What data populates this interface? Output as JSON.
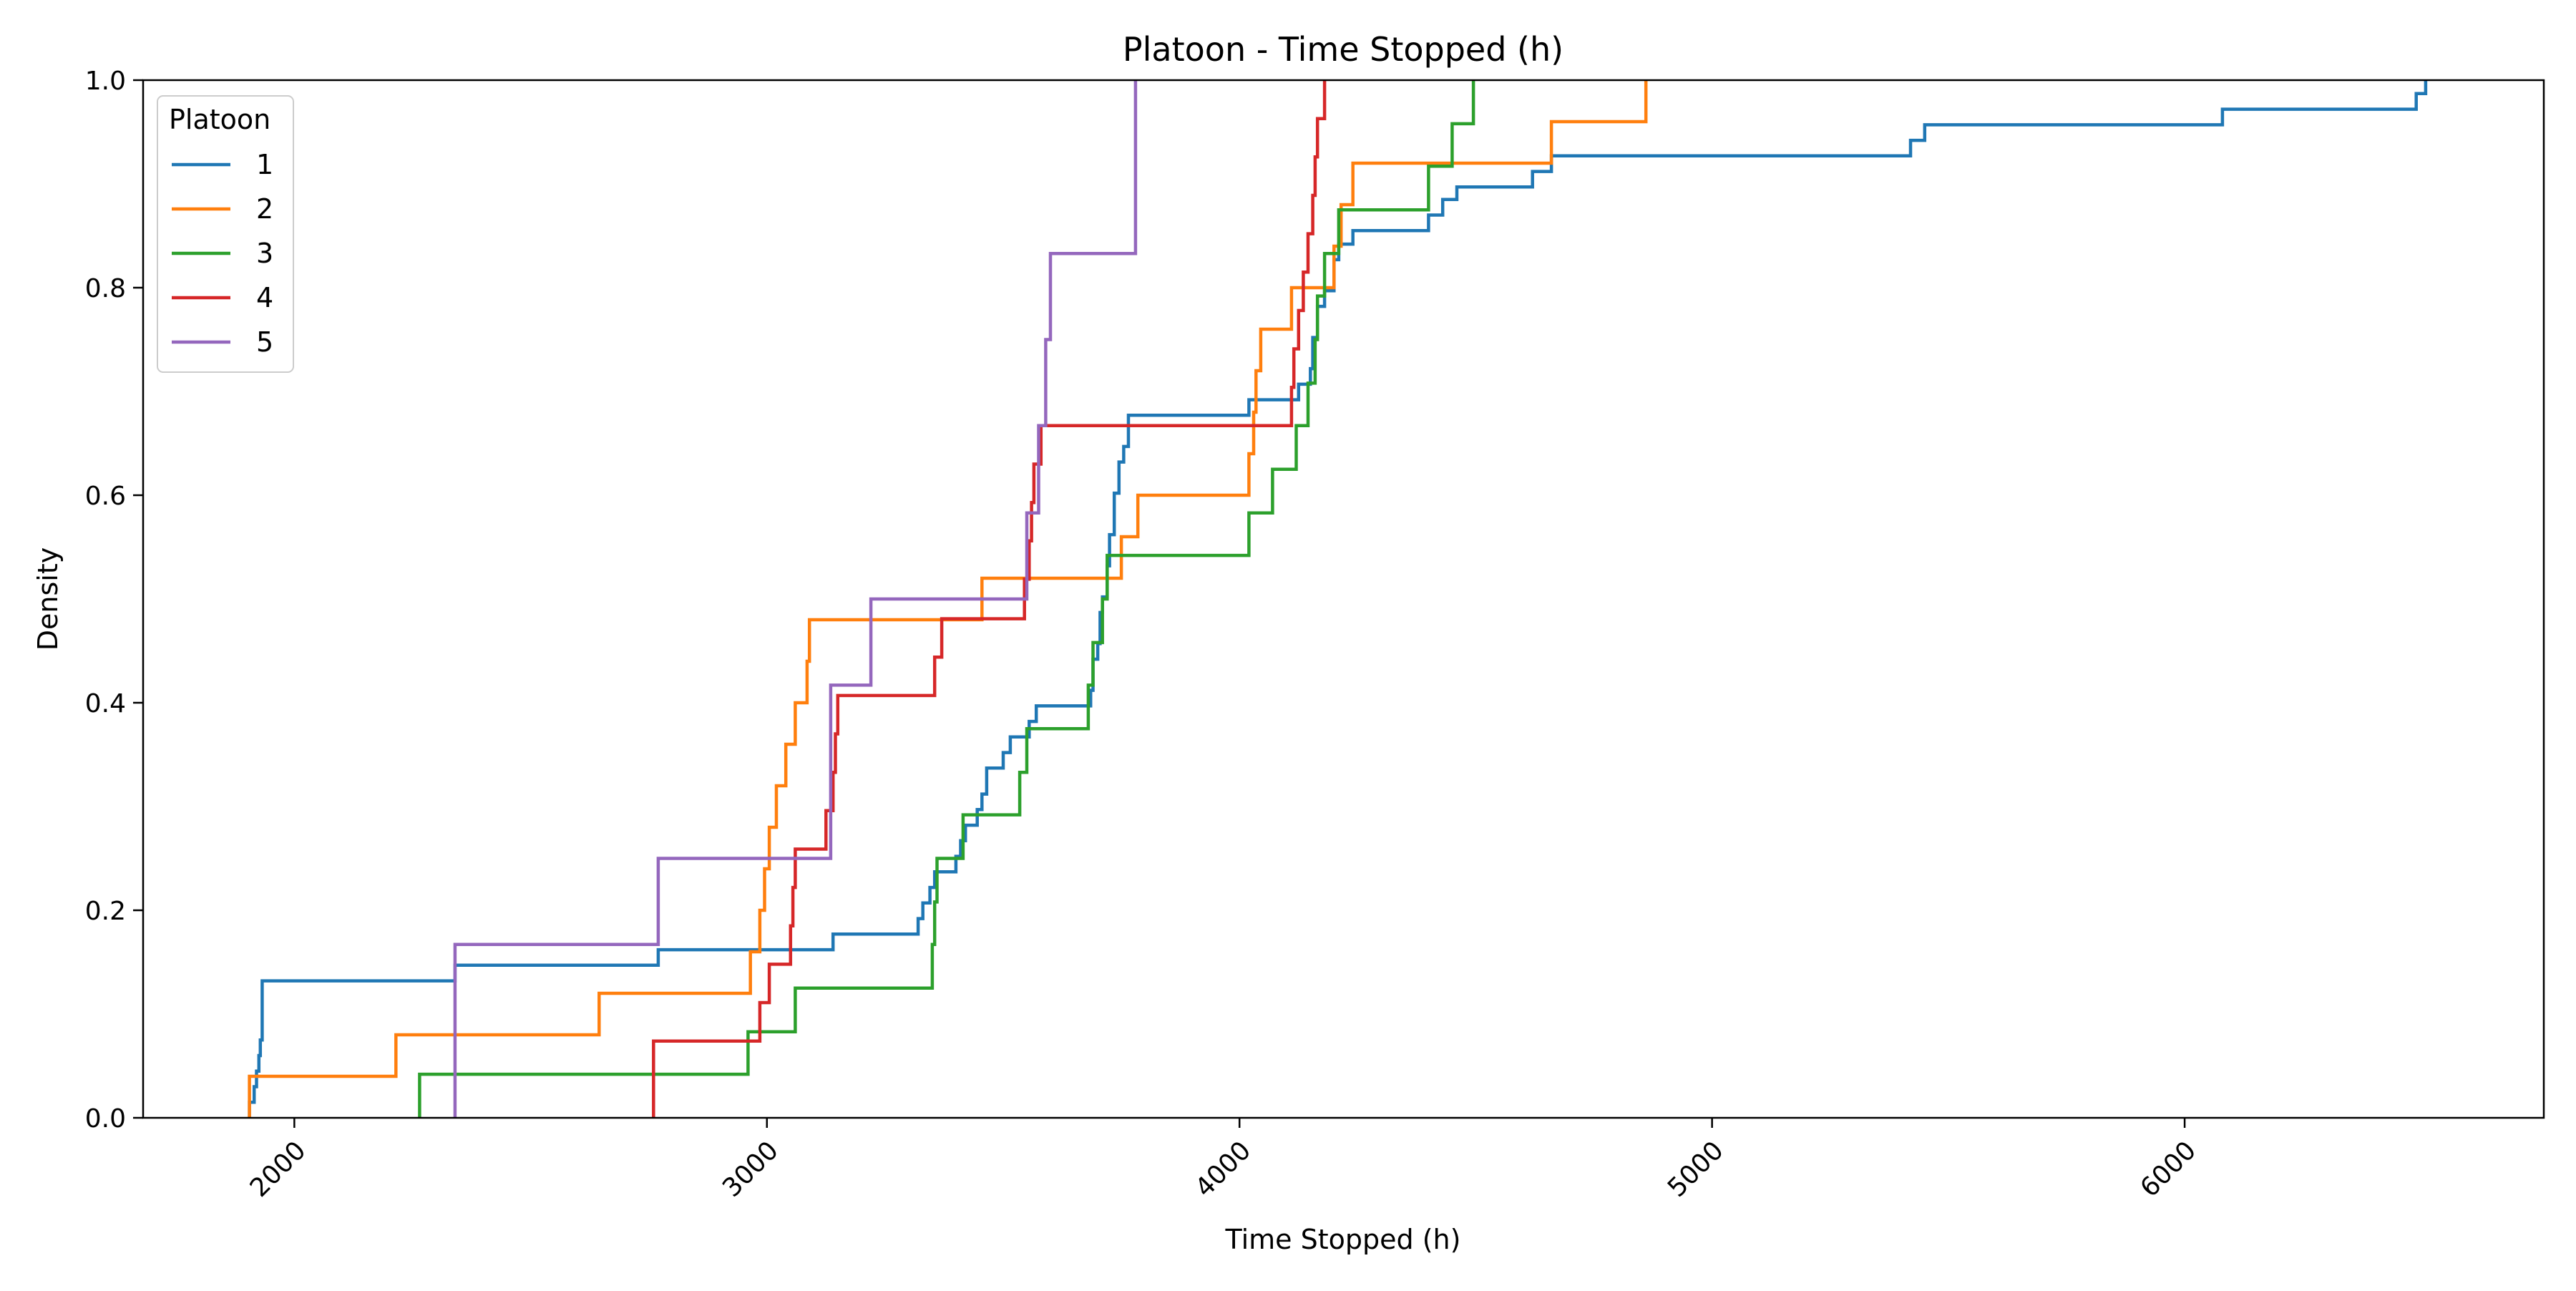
{
  "chart_data": {
    "type": "line",
    "step": true,
    "title": "Platoon - Time Stopped (h)",
    "xlabel": "Time Stopped (h)",
    "ylabel": "Density",
    "xlim": [
      1680,
      6760
    ],
    "ylim": [
      0.0,
      1.0
    ],
    "xticks": [
      2000,
      3000,
      4000,
      5000,
      6000
    ],
    "xtick_labels": [
      "2000",
      "3000",
      "4000",
      "5000",
      "6000"
    ],
    "yticks": [
      0.0,
      0.2,
      0.4,
      0.6,
      0.8,
      1.0
    ],
    "ytick_labels": [
      "0.0",
      "0.2",
      "0.4",
      "0.6",
      "0.8",
      "1.0"
    ],
    "grid": false,
    "legend": {
      "title": "Platoon",
      "placement": "top-left"
    },
    "series": [
      {
        "name": "1",
        "color": "#1f77b4",
        "points": [
          [
            1905,
            0.0
          ],
          [
            1905,
            0.015
          ],
          [
            1915,
            0.015
          ],
          [
            1915,
            0.03
          ],
          [
            1920,
            0.03
          ],
          [
            1920,
            0.045
          ],
          [
            1925,
            0.045
          ],
          [
            1925,
            0.06
          ],
          [
            1928,
            0.06
          ],
          [
            1928,
            0.075
          ],
          [
            1932,
            0.075
          ],
          [
            1932,
            0.132
          ],
          [
            2340,
            0.132
          ],
          [
            2340,
            0.147
          ],
          [
            2770,
            0.147
          ],
          [
            2770,
            0.162
          ],
          [
            3140,
            0.162
          ],
          [
            3140,
            0.177
          ],
          [
            3320,
            0.177
          ],
          [
            3320,
            0.192
          ],
          [
            3330,
            0.192
          ],
          [
            3330,
            0.207
          ],
          [
            3345,
            0.207
          ],
          [
            3345,
            0.222
          ],
          [
            3355,
            0.222
          ],
          [
            3355,
            0.237
          ],
          [
            3400,
            0.237
          ],
          [
            3400,
            0.252
          ],
          [
            3410,
            0.252
          ],
          [
            3410,
            0.267
          ],
          [
            3420,
            0.267
          ],
          [
            3420,
            0.282
          ],
          [
            3445,
            0.282
          ],
          [
            3445,
            0.297
          ],
          [
            3455,
            0.297
          ],
          [
            3455,
            0.312
          ],
          [
            3465,
            0.312
          ],
          [
            3465,
            0.337
          ],
          [
            3500,
            0.337
          ],
          [
            3500,
            0.352
          ],
          [
            3515,
            0.352
          ],
          [
            3515,
            0.367
          ],
          [
            3555,
            0.367
          ],
          [
            3555,
            0.382
          ],
          [
            3570,
            0.382
          ],
          [
            3570,
            0.397
          ],
          [
            3685,
            0.397
          ],
          [
            3685,
            0.412
          ],
          [
            3690,
            0.412
          ],
          [
            3690,
            0.442
          ],
          [
            3700,
            0.442
          ],
          [
            3700,
            0.457
          ],
          [
            3705,
            0.457
          ],
          [
            3705,
            0.487
          ],
          [
            3710,
            0.487
          ],
          [
            3710,
            0.502
          ],
          [
            3720,
            0.502
          ],
          [
            3720,
            0.532
          ],
          [
            3725,
            0.532
          ],
          [
            3725,
            0.562
          ],
          [
            3735,
            0.562
          ],
          [
            3735,
            0.602
          ],
          [
            3745,
            0.602
          ],
          [
            3745,
            0.632
          ],
          [
            3755,
            0.632
          ],
          [
            3755,
            0.647
          ],
          [
            3765,
            0.647
          ],
          [
            3765,
            0.677
          ],
          [
            4020,
            0.677
          ],
          [
            4020,
            0.692
          ],
          [
            4125,
            0.692
          ],
          [
            4125,
            0.707
          ],
          [
            4150,
            0.707
          ],
          [
            4150,
            0.722
          ],
          [
            4155,
            0.722
          ],
          [
            4155,
            0.752
          ],
          [
            4165,
            0.752
          ],
          [
            4165,
            0.782
          ],
          [
            4180,
            0.782
          ],
          [
            4180,
            0.797
          ],
          [
            4200,
            0.797
          ],
          [
            4200,
            0.827
          ],
          [
            4210,
            0.827
          ],
          [
            4210,
            0.842
          ],
          [
            4240,
            0.842
          ],
          [
            4240,
            0.855
          ],
          [
            4400,
            0.855
          ],
          [
            4400,
            0.87
          ],
          [
            4430,
            0.87
          ],
          [
            4430,
            0.885
          ],
          [
            4460,
            0.885
          ],
          [
            4460,
            0.897
          ],
          [
            4620,
            0.897
          ],
          [
            4620,
            0.912
          ],
          [
            4660,
            0.912
          ],
          [
            4660,
            0.927
          ],
          [
            5420,
            0.927
          ],
          [
            5420,
            0.942
          ],
          [
            5450,
            0.942
          ],
          [
            5450,
            0.957
          ],
          [
            6080,
            0.957
          ],
          [
            6080,
            0.972
          ],
          [
            6490,
            0.972
          ],
          [
            6490,
            0.987
          ],
          [
            6510,
            0.987
          ],
          [
            6510,
            1.0
          ]
        ]
      },
      {
        "name": "2",
        "color": "#ff7f0e",
        "points": [
          [
            1905,
            0.0
          ],
          [
            1905,
            0.04
          ],
          [
            2215,
            0.04
          ],
          [
            2215,
            0.08
          ],
          [
            2645,
            0.08
          ],
          [
            2645,
            0.12
          ],
          [
            2965,
            0.12
          ],
          [
            2965,
            0.16
          ],
          [
            2985,
            0.16
          ],
          [
            2985,
            0.2
          ],
          [
            2995,
            0.2
          ],
          [
            2995,
            0.24
          ],
          [
            3005,
            0.24
          ],
          [
            3005,
            0.28
          ],
          [
            3020,
            0.28
          ],
          [
            3020,
            0.32
          ],
          [
            3040,
            0.32
          ],
          [
            3040,
            0.36
          ],
          [
            3060,
            0.36
          ],
          [
            3060,
            0.4
          ],
          [
            3085,
            0.4
          ],
          [
            3085,
            0.44
          ],
          [
            3090,
            0.44
          ],
          [
            3090,
            0.48
          ],
          [
            3455,
            0.48
          ],
          [
            3455,
            0.52
          ],
          [
            3750,
            0.52
          ],
          [
            3750,
            0.56
          ],
          [
            3785,
            0.56
          ],
          [
            3785,
            0.6
          ],
          [
            4020,
            0.6
          ],
          [
            4020,
            0.64
          ],
          [
            4030,
            0.64
          ],
          [
            4030,
            0.68
          ],
          [
            4035,
            0.68
          ],
          [
            4035,
            0.72
          ],
          [
            4045,
            0.72
          ],
          [
            4045,
            0.76
          ],
          [
            4110,
            0.76
          ],
          [
            4110,
            0.8
          ],
          [
            4200,
            0.8
          ],
          [
            4200,
            0.84
          ],
          [
            4215,
            0.84
          ],
          [
            4215,
            0.88
          ],
          [
            4240,
            0.88
          ],
          [
            4240,
            0.92
          ],
          [
            4660,
            0.92
          ],
          [
            4660,
            0.96
          ],
          [
            4860,
            0.96
          ],
          [
            4860,
            1.0
          ]
        ]
      },
      {
        "name": "3",
        "color": "#2ca02c",
        "points": [
          [
            2265,
            0.0
          ],
          [
            2265,
            0.042
          ],
          [
            2960,
            0.042
          ],
          [
            2960,
            0.083
          ],
          [
            3060,
            0.083
          ],
          [
            3060,
            0.125
          ],
          [
            3350,
            0.125
          ],
          [
            3350,
            0.167
          ],
          [
            3355,
            0.167
          ],
          [
            3355,
            0.208
          ],
          [
            3360,
            0.208
          ],
          [
            3360,
            0.25
          ],
          [
            3415,
            0.25
          ],
          [
            3415,
            0.292
          ],
          [
            3535,
            0.292
          ],
          [
            3535,
            0.333
          ],
          [
            3550,
            0.333
          ],
          [
            3550,
            0.375
          ],
          [
            3680,
            0.375
          ],
          [
            3680,
            0.417
          ],
          [
            3690,
            0.417
          ],
          [
            3690,
            0.458
          ],
          [
            3710,
            0.458
          ],
          [
            3710,
            0.5
          ],
          [
            3720,
            0.5
          ],
          [
            3720,
            0.542
          ],
          [
            4020,
            0.542
          ],
          [
            4020,
            0.583
          ],
          [
            4070,
            0.583
          ],
          [
            4070,
            0.625
          ],
          [
            4120,
            0.625
          ],
          [
            4120,
            0.667
          ],
          [
            4145,
            0.667
          ],
          [
            4145,
            0.708
          ],
          [
            4160,
            0.708
          ],
          [
            4160,
            0.75
          ],
          [
            4165,
            0.75
          ],
          [
            4165,
            0.792
          ],
          [
            4180,
            0.792
          ],
          [
            4180,
            0.833
          ],
          [
            4210,
            0.833
          ],
          [
            4210,
            0.875
          ],
          [
            4400,
            0.875
          ],
          [
            4400,
            0.917
          ],
          [
            4450,
            0.917
          ],
          [
            4450,
            0.958
          ],
          [
            4495,
            0.958
          ],
          [
            4495,
            1.0
          ]
        ]
      },
      {
        "name": "4",
        "color": "#d62728",
        "points": [
          [
            2760,
            0.0
          ],
          [
            2760,
            0.074
          ],
          [
            2985,
            0.074
          ],
          [
            2985,
            0.111
          ],
          [
            3005,
            0.111
          ],
          [
            3005,
            0.148
          ],
          [
            3050,
            0.148
          ],
          [
            3050,
            0.185
          ],
          [
            3055,
            0.185
          ],
          [
            3055,
            0.222
          ],
          [
            3060,
            0.222
          ],
          [
            3060,
            0.259
          ],
          [
            3125,
            0.259
          ],
          [
            3125,
            0.296
          ],
          [
            3140,
            0.296
          ],
          [
            3140,
            0.333
          ],
          [
            3145,
            0.333
          ],
          [
            3145,
            0.37
          ],
          [
            3150,
            0.37
          ],
          [
            3150,
            0.407
          ],
          [
            3355,
            0.407
          ],
          [
            3355,
            0.444
          ],
          [
            3370,
            0.444
          ],
          [
            3370,
            0.481
          ],
          [
            3545,
            0.481
          ],
          [
            3545,
            0.519
          ],
          [
            3555,
            0.519
          ],
          [
            3555,
            0.556
          ],
          [
            3560,
            0.556
          ],
          [
            3560,
            0.593
          ],
          [
            3565,
            0.593
          ],
          [
            3565,
            0.63
          ],
          [
            3580,
            0.63
          ],
          [
            3580,
            0.667
          ],
          [
            4110,
            0.667
          ],
          [
            4110,
            0.704
          ],
          [
            4115,
            0.704
          ],
          [
            4115,
            0.741
          ],
          [
            4125,
            0.741
          ],
          [
            4125,
            0.778
          ],
          [
            4135,
            0.778
          ],
          [
            4135,
            0.815
          ],
          [
            4145,
            0.815
          ],
          [
            4145,
            0.852
          ],
          [
            4155,
            0.852
          ],
          [
            4155,
            0.889
          ],
          [
            4160,
            0.889
          ],
          [
            4160,
            0.926
          ],
          [
            4165,
            0.926
          ],
          [
            4165,
            0.963
          ],
          [
            4180,
            0.963
          ],
          [
            4180,
            1.0
          ]
        ]
      },
      {
        "name": "5",
        "color": "#9467bd",
        "points": [
          [
            2340,
            0.0
          ],
          [
            2340,
            0.167
          ],
          [
            2770,
            0.167
          ],
          [
            2770,
            0.25
          ],
          [
            3135,
            0.25
          ],
          [
            3135,
            0.417
          ],
          [
            3220,
            0.417
          ],
          [
            3220,
            0.5
          ],
          [
            3550,
            0.5
          ],
          [
            3550,
            0.583
          ],
          [
            3575,
            0.583
          ],
          [
            3575,
            0.667
          ],
          [
            3590,
            0.667
          ],
          [
            3590,
            0.75
          ],
          [
            3600,
            0.75
          ],
          [
            3600,
            0.833
          ],
          [
            3780,
            0.833
          ],
          [
            3780,
            1.0
          ]
        ]
      }
    ]
  }
}
